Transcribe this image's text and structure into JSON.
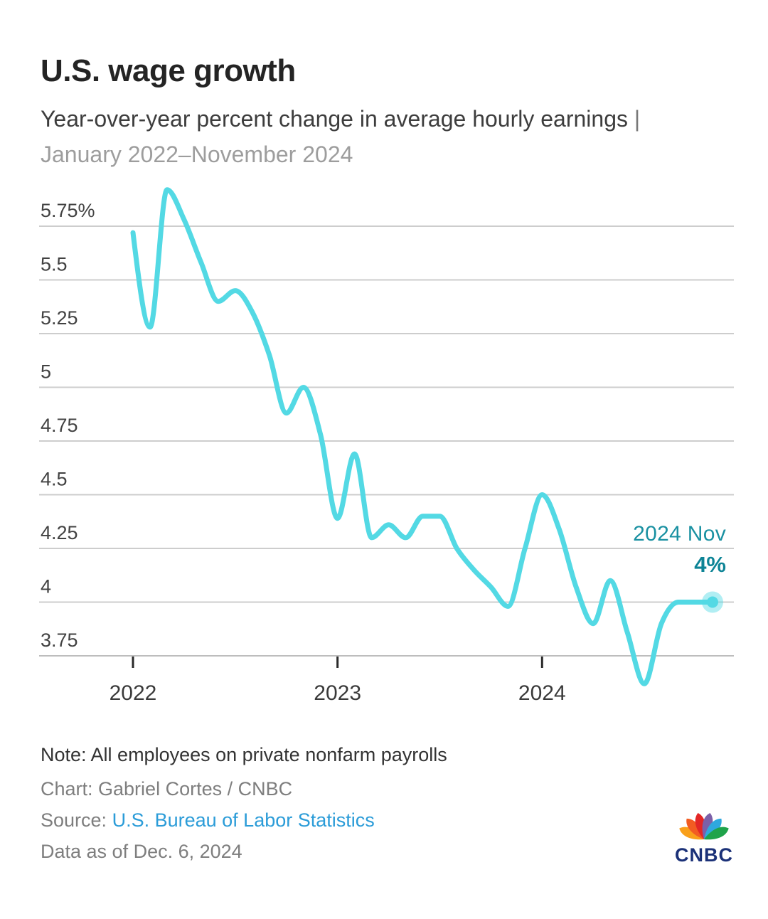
{
  "header": {
    "title": "U.S. wage growth",
    "subtitle_dark": "Year-over-year percent change in average hourly earnings",
    "subtitle_separator": "|",
    "subtitle_period": "January 2022–November 2024"
  },
  "chart_data": {
    "type": "line",
    "title": "U.S. wage growth",
    "series_name": "Year-over-year percent change in average hourly earnings",
    "x": [
      "Jan 2022",
      "Feb 2022",
      "Mar 2022",
      "Apr 2022",
      "May 2022",
      "Jun 2022",
      "Jul 2022",
      "Aug 2022",
      "Sep 2022",
      "Oct 2022",
      "Nov 2022",
      "Dec 2022",
      "Jan 2023",
      "Feb 2023",
      "Mar 2023",
      "Apr 2023",
      "May 2023",
      "Jun 2023",
      "Jul 2023",
      "Aug 2023",
      "Sep 2023",
      "Oct 2023",
      "Nov 2023",
      "Dec 2023",
      "Jan 2024",
      "Feb 2024",
      "Mar 2024",
      "Apr 2024",
      "May 2024",
      "Jun 2024",
      "Jul 2024",
      "Aug 2024",
      "Sep 2024",
      "Oct 2024",
      "Nov 2024"
    ],
    "values": [
      5.72,
      5.28,
      5.92,
      5.78,
      5.58,
      5.4,
      5.45,
      5.35,
      5.15,
      4.88,
      5.0,
      4.78,
      4.39,
      4.69,
      4.3,
      4.36,
      4.3,
      4.4,
      4.4,
      4.25,
      4.15,
      4.07,
      3.98,
      4.25,
      4.5,
      4.34,
      4.07,
      3.9,
      4.1,
      3.86,
      3.62,
      3.9,
      4.0,
      4.0,
      4.0
    ],
    "ylim": [
      3.75,
      5.75
    ],
    "grid": true,
    "legend": "none",
    "y_ticks": [
      {
        "value": 5.75,
        "label": "5.75%"
      },
      {
        "value": 5.5,
        "label": "5.5"
      },
      {
        "value": 5.25,
        "label": "5.25"
      },
      {
        "value": 5.0,
        "label": "5"
      },
      {
        "value": 4.75,
        "label": "4.75"
      },
      {
        "value": 4.5,
        "label": "4.5"
      },
      {
        "value": 4.25,
        "label": "4.25"
      },
      {
        "value": 4.0,
        "label": "4"
      },
      {
        "value": 3.75,
        "label": "3.75"
      }
    ],
    "x_ticks": [
      {
        "label": "2022",
        "month_index": 0
      },
      {
        "label": "2023",
        "month_index": 12
      },
      {
        "label": "2024",
        "month_index": 24
      }
    ],
    "line_color": "#53d9e4",
    "grid_color": "#cdcdcd",
    "annotation": {
      "label": "2024 Nov",
      "value_label": "4%",
      "color": "#1a91a2"
    }
  },
  "footer": {
    "note": "Note: All employees on private nonfarm payrolls",
    "credit": "Chart: Gabriel Cortes / CNBC",
    "source_label": "Source:",
    "source_link": "U.S. Bureau of Labor Statistics",
    "data_as_of": "Data as of Dec. 6, 2024",
    "logo_text": "CNBC"
  }
}
